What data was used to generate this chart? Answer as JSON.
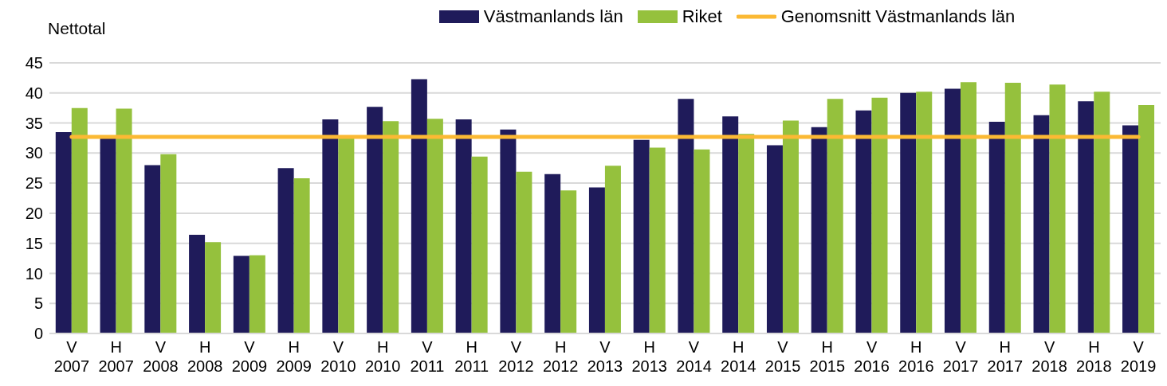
{
  "chart_data": {
    "type": "bar",
    "ylabel": "Nettotal",
    "categories": [
      "V\n2007",
      "H\n2007",
      "V\n2008",
      "H\n2008",
      "V\n2009",
      "H\n2009",
      "V\n2010",
      "H\n2010",
      "V\n2011",
      "H\n2011",
      "V\n2012",
      "H\n2012",
      "V\n2013",
      "H\n2013",
      "V\n2014",
      "H\n2014",
      "V\n2015",
      "H\n2015",
      "V\n2016",
      "H\n2016",
      "V\n2017",
      "H\n2017",
      "V\n2018",
      "H\n2018",
      "V\n2019"
    ],
    "series": [
      {
        "name": "Västmanlands län",
        "color": "#1f1b5a",
        "values": [
          33.5,
          32.7,
          28.0,
          16.4,
          12.9,
          27.5,
          35.6,
          37.7,
          42.3,
          35.6,
          33.9,
          26.5,
          24.3,
          32.2,
          39.0,
          36.1,
          31.3,
          34.3,
          37.1,
          40.0,
          40.7,
          35.2,
          36.3,
          38.6,
          34.6
        ]
      },
      {
        "name": "Riket",
        "color": "#95c13d",
        "values": [
          37.5,
          37.4,
          29.8,
          15.2,
          13.0,
          25.8,
          32.7,
          35.3,
          35.7,
          29.4,
          26.9,
          23.8,
          27.9,
          30.9,
          30.6,
          33.2,
          35.4,
          39.0,
          39.2,
          40.2,
          41.8,
          41.7,
          41.4,
          40.2,
          38.0
        ]
      },
      {
        "name": "Genomsnitt Västmanlands län",
        "type": "line",
        "color": "#fbb934",
        "values": [
          32.7,
          32.7,
          32.7,
          32.7,
          32.7,
          32.7,
          32.7,
          32.7,
          32.7,
          32.7,
          32.7,
          32.7,
          32.7,
          32.7,
          32.7,
          32.7,
          32.7,
          32.7,
          32.7,
          32.7,
          32.7,
          32.7,
          32.7,
          32.7,
          32.7
        ]
      }
    ],
    "ylim": [
      0,
      45
    ],
    "yticks": [
      0,
      5,
      10,
      15,
      20,
      25,
      30,
      35,
      40,
      45
    ],
    "grid": "y",
    "legend": "top",
    "marker": "none"
  }
}
